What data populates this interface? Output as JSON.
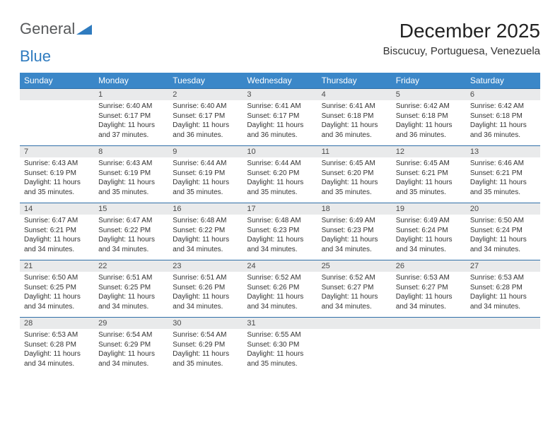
{
  "logo": {
    "word1": "General",
    "word2": "Blue"
  },
  "title": "December 2025",
  "location": "Biscucuy, Portuguesa, Venezuela",
  "colors": {
    "header_bg": "#3b87c8",
    "header_text": "#ffffff",
    "daynum_bg": "#e9eaeb",
    "rule": "#2f6fa8",
    "logo_gray": "#57595b",
    "logo_blue": "#2f7bbf"
  },
  "columns": [
    "Sunday",
    "Monday",
    "Tuesday",
    "Wednesday",
    "Thursday",
    "Friday",
    "Saturday"
  ],
  "weeks": [
    [
      null,
      {
        "n": "1",
        "sr": "Sunrise: 6:40 AM",
        "ss": "Sunset: 6:17 PM",
        "d1": "Daylight: 11 hours",
        "d2": "and 37 minutes."
      },
      {
        "n": "2",
        "sr": "Sunrise: 6:40 AM",
        "ss": "Sunset: 6:17 PM",
        "d1": "Daylight: 11 hours",
        "d2": "and 36 minutes."
      },
      {
        "n": "3",
        "sr": "Sunrise: 6:41 AM",
        "ss": "Sunset: 6:17 PM",
        "d1": "Daylight: 11 hours",
        "d2": "and 36 minutes."
      },
      {
        "n": "4",
        "sr": "Sunrise: 6:41 AM",
        "ss": "Sunset: 6:18 PM",
        "d1": "Daylight: 11 hours",
        "d2": "and 36 minutes."
      },
      {
        "n": "5",
        "sr": "Sunrise: 6:42 AM",
        "ss": "Sunset: 6:18 PM",
        "d1": "Daylight: 11 hours",
        "d2": "and 36 minutes."
      },
      {
        "n": "6",
        "sr": "Sunrise: 6:42 AM",
        "ss": "Sunset: 6:18 PM",
        "d1": "Daylight: 11 hours",
        "d2": "and 36 minutes."
      }
    ],
    [
      {
        "n": "7",
        "sr": "Sunrise: 6:43 AM",
        "ss": "Sunset: 6:19 PM",
        "d1": "Daylight: 11 hours",
        "d2": "and 35 minutes."
      },
      {
        "n": "8",
        "sr": "Sunrise: 6:43 AM",
        "ss": "Sunset: 6:19 PM",
        "d1": "Daylight: 11 hours",
        "d2": "and 35 minutes."
      },
      {
        "n": "9",
        "sr": "Sunrise: 6:44 AM",
        "ss": "Sunset: 6:19 PM",
        "d1": "Daylight: 11 hours",
        "d2": "and 35 minutes."
      },
      {
        "n": "10",
        "sr": "Sunrise: 6:44 AM",
        "ss": "Sunset: 6:20 PM",
        "d1": "Daylight: 11 hours",
        "d2": "and 35 minutes."
      },
      {
        "n": "11",
        "sr": "Sunrise: 6:45 AM",
        "ss": "Sunset: 6:20 PM",
        "d1": "Daylight: 11 hours",
        "d2": "and 35 minutes."
      },
      {
        "n": "12",
        "sr": "Sunrise: 6:45 AM",
        "ss": "Sunset: 6:21 PM",
        "d1": "Daylight: 11 hours",
        "d2": "and 35 minutes."
      },
      {
        "n": "13",
        "sr": "Sunrise: 6:46 AM",
        "ss": "Sunset: 6:21 PM",
        "d1": "Daylight: 11 hours",
        "d2": "and 35 minutes."
      }
    ],
    [
      {
        "n": "14",
        "sr": "Sunrise: 6:47 AM",
        "ss": "Sunset: 6:21 PM",
        "d1": "Daylight: 11 hours",
        "d2": "and 34 minutes."
      },
      {
        "n": "15",
        "sr": "Sunrise: 6:47 AM",
        "ss": "Sunset: 6:22 PM",
        "d1": "Daylight: 11 hours",
        "d2": "and 34 minutes."
      },
      {
        "n": "16",
        "sr": "Sunrise: 6:48 AM",
        "ss": "Sunset: 6:22 PM",
        "d1": "Daylight: 11 hours",
        "d2": "and 34 minutes."
      },
      {
        "n": "17",
        "sr": "Sunrise: 6:48 AM",
        "ss": "Sunset: 6:23 PM",
        "d1": "Daylight: 11 hours",
        "d2": "and 34 minutes."
      },
      {
        "n": "18",
        "sr": "Sunrise: 6:49 AM",
        "ss": "Sunset: 6:23 PM",
        "d1": "Daylight: 11 hours",
        "d2": "and 34 minutes."
      },
      {
        "n": "19",
        "sr": "Sunrise: 6:49 AM",
        "ss": "Sunset: 6:24 PM",
        "d1": "Daylight: 11 hours",
        "d2": "and 34 minutes."
      },
      {
        "n": "20",
        "sr": "Sunrise: 6:50 AM",
        "ss": "Sunset: 6:24 PM",
        "d1": "Daylight: 11 hours",
        "d2": "and 34 minutes."
      }
    ],
    [
      {
        "n": "21",
        "sr": "Sunrise: 6:50 AM",
        "ss": "Sunset: 6:25 PM",
        "d1": "Daylight: 11 hours",
        "d2": "and 34 minutes."
      },
      {
        "n": "22",
        "sr": "Sunrise: 6:51 AM",
        "ss": "Sunset: 6:25 PM",
        "d1": "Daylight: 11 hours",
        "d2": "and 34 minutes."
      },
      {
        "n": "23",
        "sr": "Sunrise: 6:51 AM",
        "ss": "Sunset: 6:26 PM",
        "d1": "Daylight: 11 hours",
        "d2": "and 34 minutes."
      },
      {
        "n": "24",
        "sr": "Sunrise: 6:52 AM",
        "ss": "Sunset: 6:26 PM",
        "d1": "Daylight: 11 hours",
        "d2": "and 34 minutes."
      },
      {
        "n": "25",
        "sr": "Sunrise: 6:52 AM",
        "ss": "Sunset: 6:27 PM",
        "d1": "Daylight: 11 hours",
        "d2": "and 34 minutes."
      },
      {
        "n": "26",
        "sr": "Sunrise: 6:53 AM",
        "ss": "Sunset: 6:27 PM",
        "d1": "Daylight: 11 hours",
        "d2": "and 34 minutes."
      },
      {
        "n": "27",
        "sr": "Sunrise: 6:53 AM",
        "ss": "Sunset: 6:28 PM",
        "d1": "Daylight: 11 hours",
        "d2": "and 34 minutes."
      }
    ],
    [
      {
        "n": "28",
        "sr": "Sunrise: 6:53 AM",
        "ss": "Sunset: 6:28 PM",
        "d1": "Daylight: 11 hours",
        "d2": "and 34 minutes."
      },
      {
        "n": "29",
        "sr": "Sunrise: 6:54 AM",
        "ss": "Sunset: 6:29 PM",
        "d1": "Daylight: 11 hours",
        "d2": "and 34 minutes."
      },
      {
        "n": "30",
        "sr": "Sunrise: 6:54 AM",
        "ss": "Sunset: 6:29 PM",
        "d1": "Daylight: 11 hours",
        "d2": "and 35 minutes."
      },
      {
        "n": "31",
        "sr": "Sunrise: 6:55 AM",
        "ss": "Sunset: 6:30 PM",
        "d1": "Daylight: 11 hours",
        "d2": "and 35 minutes."
      },
      null,
      null,
      null
    ]
  ]
}
